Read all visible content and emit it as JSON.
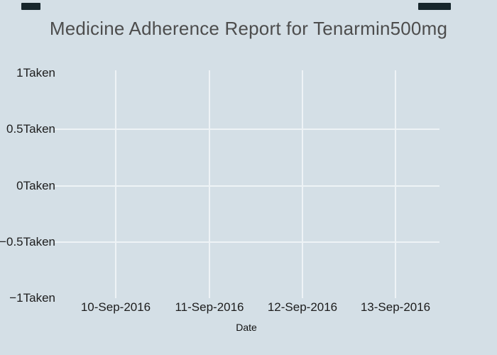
{
  "window": {
    "background_color": "#d4dfe6",
    "corner_mark_color": "#17262c"
  },
  "chart_data": {
    "type": "line",
    "title": "Medicine Adherence Report for Tenarmin500mg",
    "xlabel": "Date",
    "ylabel": "",
    "x_tick_labels": [
      "10-Sep-2016",
      "11-Sep-2016",
      "12-Sep-2016",
      "13-Sep-2016"
    ],
    "y_tick_labels": [
      "1Taken",
      "0.5Taken",
      "0Taken",
      "−0.5Taken",
      "−1Taken"
    ],
    "y_tick_values": [
      1,
      0.5,
      0,
      -0.5,
      -1
    ],
    "ylim": [
      -1,
      1
    ],
    "grid": true,
    "legend_position": "none",
    "series": [],
    "colors": {
      "background": "#d4dfe6",
      "gridline": "#eef3f6",
      "title": "#4d4d4d",
      "tick": "#1d1d1d",
      "axis_title": "#111111"
    }
  }
}
